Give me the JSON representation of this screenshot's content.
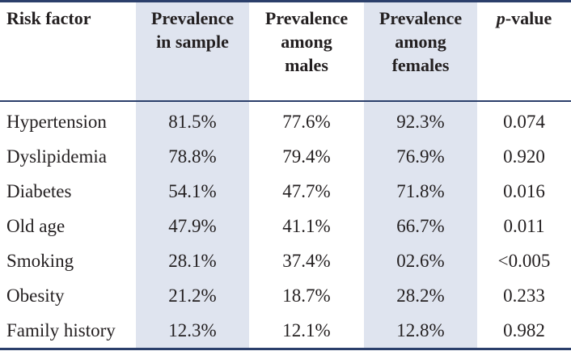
{
  "table": {
    "headers": {
      "risk_factor": "Risk factor",
      "prevalence_sample": "Prevalence\nin sample",
      "prevalence_males": "Prevalence\namong\nmales",
      "prevalence_females": "Prevalence\namong\nfemales",
      "p_value_italic": "p",
      "p_value_rest": "-value"
    },
    "rows": [
      {
        "factor": "Hypertension",
        "sample": "81.5%",
        "males": "77.6%",
        "females": "92.3%",
        "p": "0.074"
      },
      {
        "factor": "Dyslipidemia",
        "sample": "78.8%",
        "males": "79.4%",
        "females": "76.9%",
        "p": "0.920"
      },
      {
        "factor": "Diabetes",
        "sample": "54.1%",
        "males": "47.7%",
        "females": "71.8%",
        "p": "0.016"
      },
      {
        "factor": "Old age",
        "sample": "47.9%",
        "males": "41.1%",
        "females": "66.7%",
        "p": "0.011"
      },
      {
        "factor": "Smoking",
        "sample": "28.1%",
        "males": "37.4%",
        "females": "02.6%",
        "p": "<0.005"
      },
      {
        "factor": "Obesity",
        "sample": "21.2%",
        "males": "18.7%",
        "females": "28.2%",
        "p": "0.233"
      },
      {
        "factor": "Family history",
        "sample": "12.3%",
        "males": "12.1%",
        "females": "12.8%",
        "p": "0.982"
      }
    ]
  },
  "colors": {
    "rule": "#2b3f6b",
    "shade": "#dfe4ef",
    "text": "#231f20"
  }
}
